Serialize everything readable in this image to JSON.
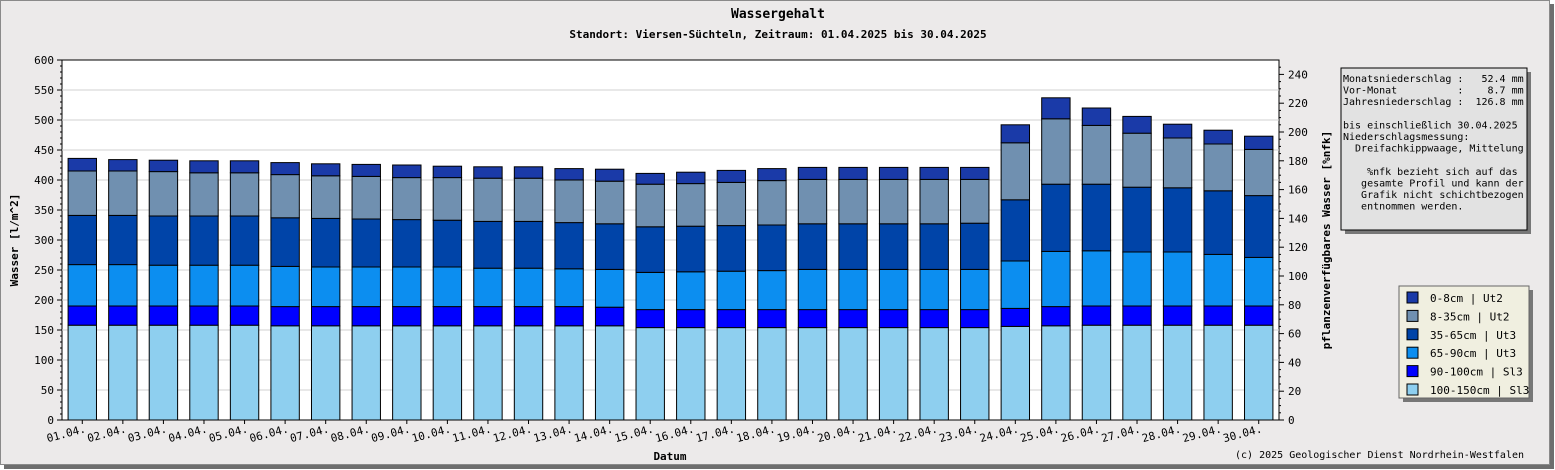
{
  "chart_data": {
    "type": "bar",
    "stacked": true,
    "title": "Wassergehalt",
    "subtitle": "Standort: Viersen-Süchteln, Zeitraum: 01.04.2025 bis 30.04.2025",
    "xlabel": "Datum",
    "ylabel": "Wasser [l/m^2]",
    "y2label": "pflanzenverfügbares Wasser [%nfk]",
    "ylim": [
      0,
      600
    ],
    "y2lim": [
      0,
      250
    ],
    "yticks": [
      0,
      50,
      100,
      150,
      200,
      250,
      300,
      350,
      400,
      450,
      500,
      550,
      600
    ],
    "y2ticks": [
      0,
      20,
      40,
      60,
      80,
      100,
      120,
      140,
      160,
      180,
      200,
      220,
      240
    ],
    "grid": true,
    "legend_position": "right",
    "categories": [
      "01.04.",
      "02.04.",
      "03.04.",
      "04.04.",
      "05.04.",
      "06.04.",
      "07.04.",
      "08.04.",
      "09.04.",
      "10.04.",
      "11.04.",
      "12.04.",
      "13.04.",
      "14.04.",
      "15.04.",
      "16.04.",
      "17.04.",
      "18.04.",
      "19.04.",
      "20.04.",
      "21.04.",
      "22.04.",
      "23.04.",
      "24.04.",
      "25.04.",
      "26.04.",
      "27.04.",
      "28.04.",
      "29.04.",
      "30.04."
    ],
    "series": [
      {
        "name": "100-150cm | Sl3",
        "color": "#8ecfef",
        "values": [
          158,
          158,
          158,
          158,
          158,
          157,
          157,
          157,
          157,
          157,
          157,
          157,
          157,
          157,
          154,
          154,
          154,
          154,
          154,
          154,
          154,
          154,
          154,
          156,
          157,
          158,
          158,
          158,
          158,
          158
        ]
      },
      {
        "name": "90-100cm | Sl3",
        "color": "#0000ff",
        "values": [
          32,
          32,
          32,
          32,
          32,
          32,
          32,
          32,
          32,
          32,
          32,
          32,
          32,
          31,
          30,
          30,
          30,
          30,
          30,
          30,
          30,
          30,
          30,
          30,
          32,
          32,
          32,
          32,
          32,
          32
        ]
      },
      {
        "name": "65-90cm | Ut3",
        "color": "#0c8ef0",
        "values": [
          69,
          69,
          68,
          68,
          68,
          67,
          66,
          66,
          66,
          66,
          64,
          64,
          63,
          63,
          62,
          63,
          64,
          65,
          67,
          67,
          67,
          67,
          67,
          79,
          92,
          92,
          90,
          90,
          86,
          81
        ]
      },
      {
        "name": "35-65cm | Ut3",
        "color": "#0044a8",
        "values": [
          82,
          82,
          82,
          82,
          82,
          81,
          81,
          80,
          79,
          78,
          78,
          78,
          77,
          76,
          76,
          76,
          76,
          76,
          76,
          76,
          76,
          76,
          77,
          102,
          112,
          111,
          108,
          107,
          106,
          103
        ]
      },
      {
        "name": "8-35cm | Ut2",
        "color": "#7090b0",
        "values": [
          74,
          74,
          74,
          72,
          72,
          72,
          71,
          71,
          70,
          71,
          72,
          72,
          71,
          71,
          71,
          71,
          72,
          74,
          74,
          74,
          74,
          74,
          73,
          95,
          109,
          98,
          90,
          83,
          78,
          77
        ]
      },
      {
        "name": "0-8cm | Ut2",
        "color": "#1a3aa8",
        "values": [
          21,
          19,
          19,
          20,
          20,
          20,
          20,
          20,
          21,
          19,
          19,
          19,
          19,
          20,
          18,
          19,
          20,
          20,
          20,
          20,
          20,
          20,
          20,
          30,
          35,
          29,
          28,
          23,
          23,
          22
        ]
      }
    ]
  },
  "info_box": {
    "lines": [
      "Monatsniederschlag :   52.4 mm",
      "Vor-Monat          :    8.7 mm",
      "Jahresniederschlag :  126.8 mm",
      "",
      "bis einschließlich 30.04.2025",
      "Niederschlagsmessung:",
      "  Dreifachkippwaage, Mittelung",
      "",
      "    %nfk bezieht sich auf das",
      "   gesamte Profil und kann der",
      "   Grafik nicht schichtbezogen",
      "   entnommen werden."
    ]
  },
  "credit": "(c) 2025 Geologischer Dienst Nordrhein-Westfalen"
}
